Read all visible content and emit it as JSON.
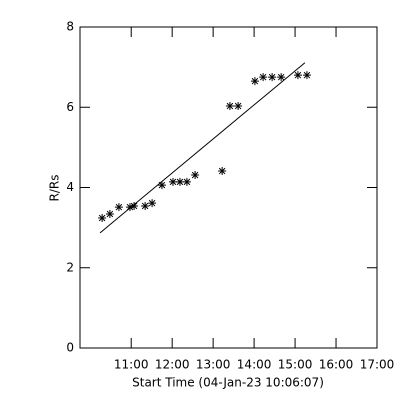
{
  "chart_data": {
    "type": "scatter",
    "xlabel": "Start Time (04-Jan-23 10:06:07)",
    "ylabel": "R/Rs",
    "x": [
      10.29,
      10.48,
      10.7,
      10.97,
      11.07,
      11.34,
      11.51,
      11.75,
      12.02,
      12.19,
      12.36,
      12.56,
      13.22,
      13.41,
      13.61,
      14.02,
      14.22,
      14.44,
      14.66,
      15.07,
      15.29
    ],
    "values": [
      3.24,
      3.34,
      3.51,
      3.51,
      3.54,
      3.54,
      3.61,
      4.06,
      4.14,
      4.14,
      4.14,
      4.31,
      4.41,
      6.03,
      6.03,
      6.65,
      6.75,
      6.75,
      6.75,
      6.8,
      6.8
    ],
    "fit": {
      "x": [
        10.24,
        15.24
      ],
      "y": [
        2.87,
        7.11
      ]
    },
    "color": "#000000",
    "xlim": [
      9.75,
      17.0
    ],
    "xticks": [
      {
        "value": 11,
        "label": "11:00"
      },
      {
        "value": 12,
        "label": "12:00"
      },
      {
        "value": 13,
        "label": "13:00"
      },
      {
        "value": 14,
        "label": "14:00"
      },
      {
        "value": 15,
        "label": "15:00"
      },
      {
        "value": 16,
        "label": "16:00"
      },
      {
        "value": 17,
        "label": "17:00"
      }
    ],
    "ylim": [
      0,
      8
    ],
    "yticks": [
      0,
      2,
      4,
      6,
      8
    ]
  }
}
